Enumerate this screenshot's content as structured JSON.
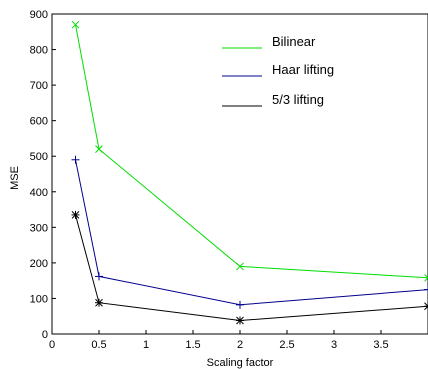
{
  "chart_data": {
    "type": "line",
    "title": "",
    "xlabel": "Scaling factor",
    "ylabel": "MSE",
    "xlim": [
      0,
      4
    ],
    "ylim": [
      0,
      900
    ],
    "xticks": [
      0,
      0.5,
      1,
      1.5,
      2,
      2.5,
      3,
      3.5
    ],
    "xtick_labels": [
      "0",
      "0.5",
      "1",
      "1.5",
      "2",
      "2.5",
      "3",
      "3.5"
    ],
    "yticks": [
      0,
      100,
      200,
      300,
      400,
      500,
      600,
      700,
      800,
      900
    ],
    "ytick_labels": [
      "0",
      "100",
      "200",
      "300",
      "400",
      "500",
      "600",
      "700",
      "800",
      "900"
    ],
    "grid": false,
    "legend_position": "top-right",
    "x": [
      0.25,
      0.5,
      2,
      4
    ],
    "series": [
      {
        "name": "Bilinear",
        "values": [
          870,
          520,
          190,
          158
        ],
        "color": "#00dd00",
        "marker": "x"
      },
      {
        "name": "Haar lifting",
        "values": [
          490,
          162,
          82,
          125
        ],
        "color": "#00008b",
        "marker": "+"
      },
      {
        "name": "5/3 lifting",
        "values": [
          335,
          88,
          38,
          78
        ],
        "color": "#000000",
        "marker": "*"
      }
    ]
  }
}
